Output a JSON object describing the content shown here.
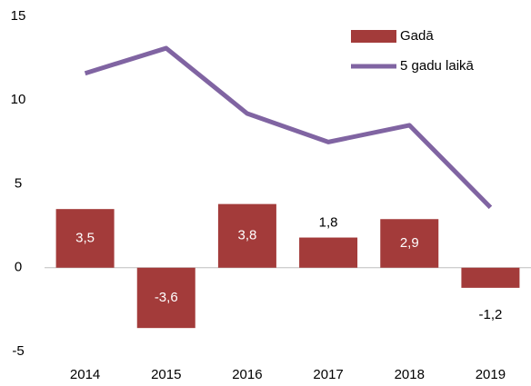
{
  "chart_data": {
    "type": "bar",
    "categories": [
      "2014",
      "2015",
      "2016",
      "2017",
      "2018",
      "2019"
    ],
    "series": [
      {
        "name": "Gadā",
        "type": "bar",
        "color": "#a33b3a",
        "values": [
          3.5,
          -3.6,
          3.8,
          1.8,
          2.9,
          -1.2
        ],
        "value_labels": [
          "3,5",
          "-3,6",
          "3,8",
          "1,8",
          "2,9",
          "-1,2"
        ]
      },
      {
        "name": "5 gadu laikā",
        "type": "line",
        "color": "#8064a2",
        "values": [
          11.6,
          13.1,
          9.2,
          7.5,
          8.5,
          3.6
        ]
      }
    ],
    "ylim": [
      -5,
      15
    ],
    "yticks": [
      -5,
      0,
      5,
      10,
      15
    ],
    "legend": "top-right"
  }
}
